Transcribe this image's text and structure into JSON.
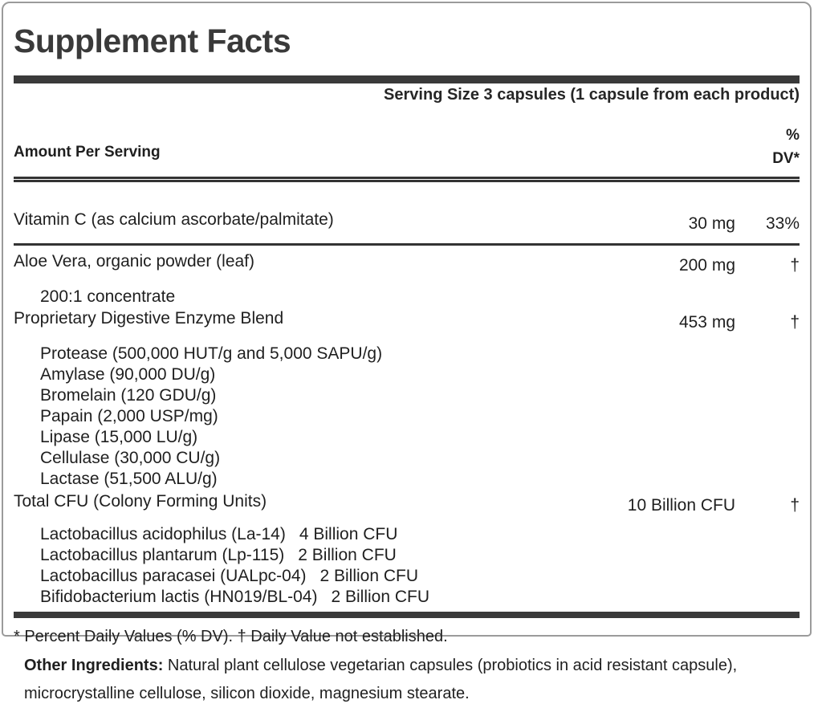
{
  "panel": {
    "title": "Supplement Facts",
    "serving_size": "Serving Size 3 capsules (1 capsule from each product)",
    "header": {
      "amount_label": "Amount Per Serving",
      "dv_line1": "%",
      "dv_line2": "DV*"
    },
    "rows": {
      "vitamin_c": {
        "name": "Vitamin C (as calcium ascorbate/palmitate)",
        "amount": "30 mg",
        "dv": "33%"
      },
      "aloe": {
        "name": "Aloe Vera, organic powder (leaf)",
        "amount": "200 mg",
        "dv": "†",
        "sub": "200:1 concentrate"
      },
      "enzyme_blend": {
        "name": "Proprietary Digestive Enzyme Blend",
        "amount": "453 mg",
        "dv": "†",
        "subs": [
          "Protease (500,000 HUT/g and 5,000 SAPU/g)",
          "Amylase (90,000 DU/g)",
          "Bromelain (120 GDU/g)",
          "Papain (2,000 USP/mg)",
          "Lipase (15,000 LU/g)",
          "Cellulase (30,000 CU/g)",
          "Lactase (51,500 ALU/g)"
        ]
      },
      "cfu": {
        "name": "Total CFU (Colony Forming Units)",
        "amount": "10 Billion CFU",
        "dv": "†",
        "strains": [
          {
            "name": "Lactobacillus acidophilus (La-14)",
            "count": "4 Billion CFU"
          },
          {
            "name": "Lactobacillus plantarum (Lp-115)",
            "count": "2 Billion CFU"
          },
          {
            "name": "Lactobacillus paracasei (UALpc-04)",
            "count": "2 Billion CFU"
          },
          {
            "name": "Bifidobacterium lactis (HN019/BL-04)",
            "count": "2 Billion CFU"
          }
        ]
      }
    },
    "footnote": "* Percent Daily Values (% DV). † Daily Value not established."
  },
  "other_ingredients": {
    "label": "Other Ingredients:",
    "text": "Natural plant cellulose vegetarian capsules (probiotics in acid resistant capsule), microcrystalline cellulose, silicon dioxide, magnesium stearate."
  },
  "colors": {
    "text": "#1f1f1f",
    "rule": "#3a3a3a",
    "panel_border": "#9b9b9b",
    "background": "#ffffff"
  }
}
